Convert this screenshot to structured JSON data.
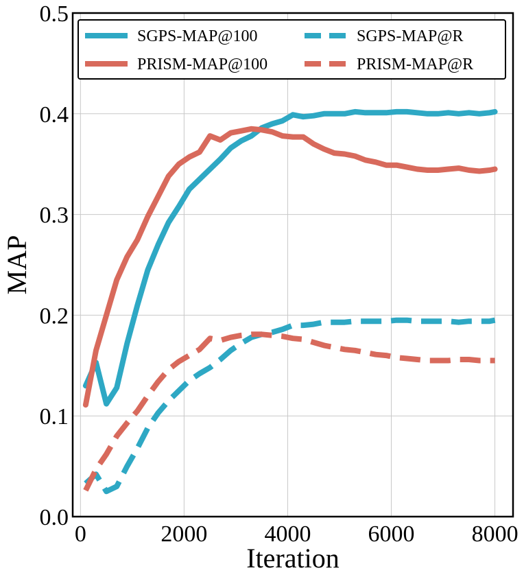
{
  "chart_data": {
    "type": "line",
    "title": "",
    "xlabel": "Iteration",
    "ylabel": "MAP",
    "xlim": [
      -150,
      8350
    ],
    "ylim": [
      0.0,
      0.5
    ],
    "xticks": [
      0,
      2000,
      4000,
      6000,
      8000
    ],
    "xtick_labels": [
      "0",
      "2000",
      "4000",
      "6000",
      "8000"
    ],
    "yticks": [
      0.0,
      0.1,
      0.2,
      0.3,
      0.4,
      0.5
    ],
    "ytick_labels": [
      "0.0",
      "0.1",
      "0.2",
      "0.3",
      "0.4",
      "0.5"
    ],
    "grid": true,
    "legend_position": "top",
    "x": [
      100,
      300,
      500,
      700,
      900,
      1100,
      1300,
      1500,
      1700,
      1900,
      2100,
      2300,
      2500,
      2700,
      2900,
      3100,
      3300,
      3500,
      3700,
      3900,
      4100,
      4300,
      4500,
      4700,
      4900,
      5100,
      5300,
      5500,
      5700,
      5900,
      6100,
      6300,
      6500,
      6700,
      6900,
      7100,
      7300,
      7500,
      7700,
      7900,
      8000
    ],
    "series": [
      {
        "name": "SGPS-MAP@100",
        "color": "#2ea8c4",
        "dashed": false,
        "values": [
          0.13,
          0.153,
          0.112,
          0.128,
          0.172,
          0.21,
          0.245,
          0.27,
          0.292,
          0.308,
          0.325,
          0.335,
          0.345,
          0.355,
          0.366,
          0.373,
          0.378,
          0.386,
          0.39,
          0.393,
          0.399,
          0.397,
          0.398,
          0.4,
          0.4,
          0.4,
          0.402,
          0.401,
          0.401,
          0.401,
          0.402,
          0.402,
          0.401,
          0.4,
          0.4,
          0.401,
          0.4,
          0.401,
          0.4,
          0.401,
          0.402
        ]
      },
      {
        "name": "PRISM-MAP@100",
        "color": "#d86a5c",
        "dashed": false,
        "values": [
          0.111,
          0.165,
          0.2,
          0.235,
          0.258,
          0.275,
          0.298,
          0.318,
          0.338,
          0.35,
          0.357,
          0.362,
          0.378,
          0.374,
          0.381,
          0.383,
          0.385,
          0.384,
          0.382,
          0.378,
          0.377,
          0.377,
          0.37,
          0.365,
          0.361,
          0.36,
          0.358,
          0.354,
          0.352,
          0.349,
          0.349,
          0.347,
          0.345,
          0.344,
          0.344,
          0.345,
          0.346,
          0.344,
          0.343,
          0.344,
          0.345
        ]
      },
      {
        "name": "SGPS-MAP@R",
        "color": "#2ea8c4",
        "dashed": true,
        "values": [
          0.033,
          0.042,
          0.025,
          0.03,
          0.05,
          0.068,
          0.088,
          0.103,
          0.115,
          0.125,
          0.135,
          0.142,
          0.148,
          0.156,
          0.165,
          0.172,
          0.178,
          0.181,
          0.183,
          0.186,
          0.19,
          0.19,
          0.191,
          0.193,
          0.193,
          0.193,
          0.194,
          0.194,
          0.194,
          0.194,
          0.195,
          0.195,
          0.194,
          0.194,
          0.194,
          0.194,
          0.193,
          0.194,
          0.194,
          0.194,
          0.195
        ]
      },
      {
        "name": "PRISM-MAP@R",
        "color": "#d86a5c",
        "dashed": true,
        "values": [
          0.026,
          0.047,
          0.062,
          0.08,
          0.093,
          0.105,
          0.12,
          0.134,
          0.146,
          0.154,
          0.16,
          0.166,
          0.177,
          0.175,
          0.178,
          0.18,
          0.181,
          0.181,
          0.18,
          0.179,
          0.177,
          0.176,
          0.173,
          0.17,
          0.168,
          0.166,
          0.165,
          0.163,
          0.161,
          0.16,
          0.158,
          0.157,
          0.156,
          0.155,
          0.155,
          0.155,
          0.156,
          0.156,
          0.155,
          0.155,
          0.155
        ]
      }
    ]
  }
}
